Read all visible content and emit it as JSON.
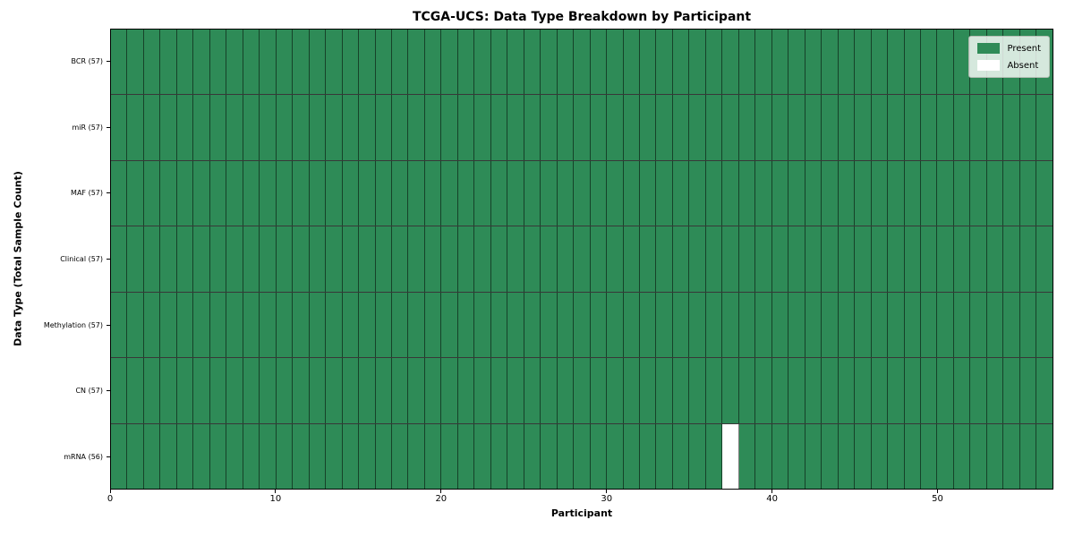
{
  "chart_data": {
    "type": "heatmap",
    "title": "TCGA-UCS: Data Type Breakdown by Participant",
    "xlabel": "Participant",
    "ylabel": "Data Type (Total Sample Count)",
    "n_participants": 57,
    "xlim": [
      0,
      57
    ],
    "x_ticks": [
      0,
      10,
      20,
      30,
      40,
      50
    ],
    "grid": "cell-edges",
    "rows": [
      {
        "label": "BCR (57)",
        "data_type": "BCR",
        "total_samples": 57,
        "absent_participants": []
      },
      {
        "label": "miR (57)",
        "data_type": "miR",
        "total_samples": 57,
        "absent_participants": []
      },
      {
        "label": "MAF (57)",
        "data_type": "MAF",
        "total_samples": 57,
        "absent_participants": []
      },
      {
        "label": "Clinical (57)",
        "data_type": "Clinical",
        "total_samples": 57,
        "absent_participants": []
      },
      {
        "label": "Methylation (57)",
        "data_type": "Methylation",
        "total_samples": 57,
        "absent_participants": []
      },
      {
        "label": "CN (57)",
        "data_type": "CN",
        "total_samples": 57,
        "absent_participants": []
      },
      {
        "label": "mRNA (56)",
        "data_type": "mRNA",
        "total_samples": 56,
        "absent_participants": [
          37
        ]
      }
    ],
    "legend": {
      "position": "upper right",
      "entries": [
        {
          "label": "Present",
          "color": "#2e8b57"
        },
        {
          "label": "Absent",
          "color": "#ffffff"
        }
      ]
    },
    "colors": {
      "present": "#2e8b57",
      "absent": "#ffffff",
      "cell_edge": "#1b4d33",
      "spine": "#000000"
    }
  }
}
